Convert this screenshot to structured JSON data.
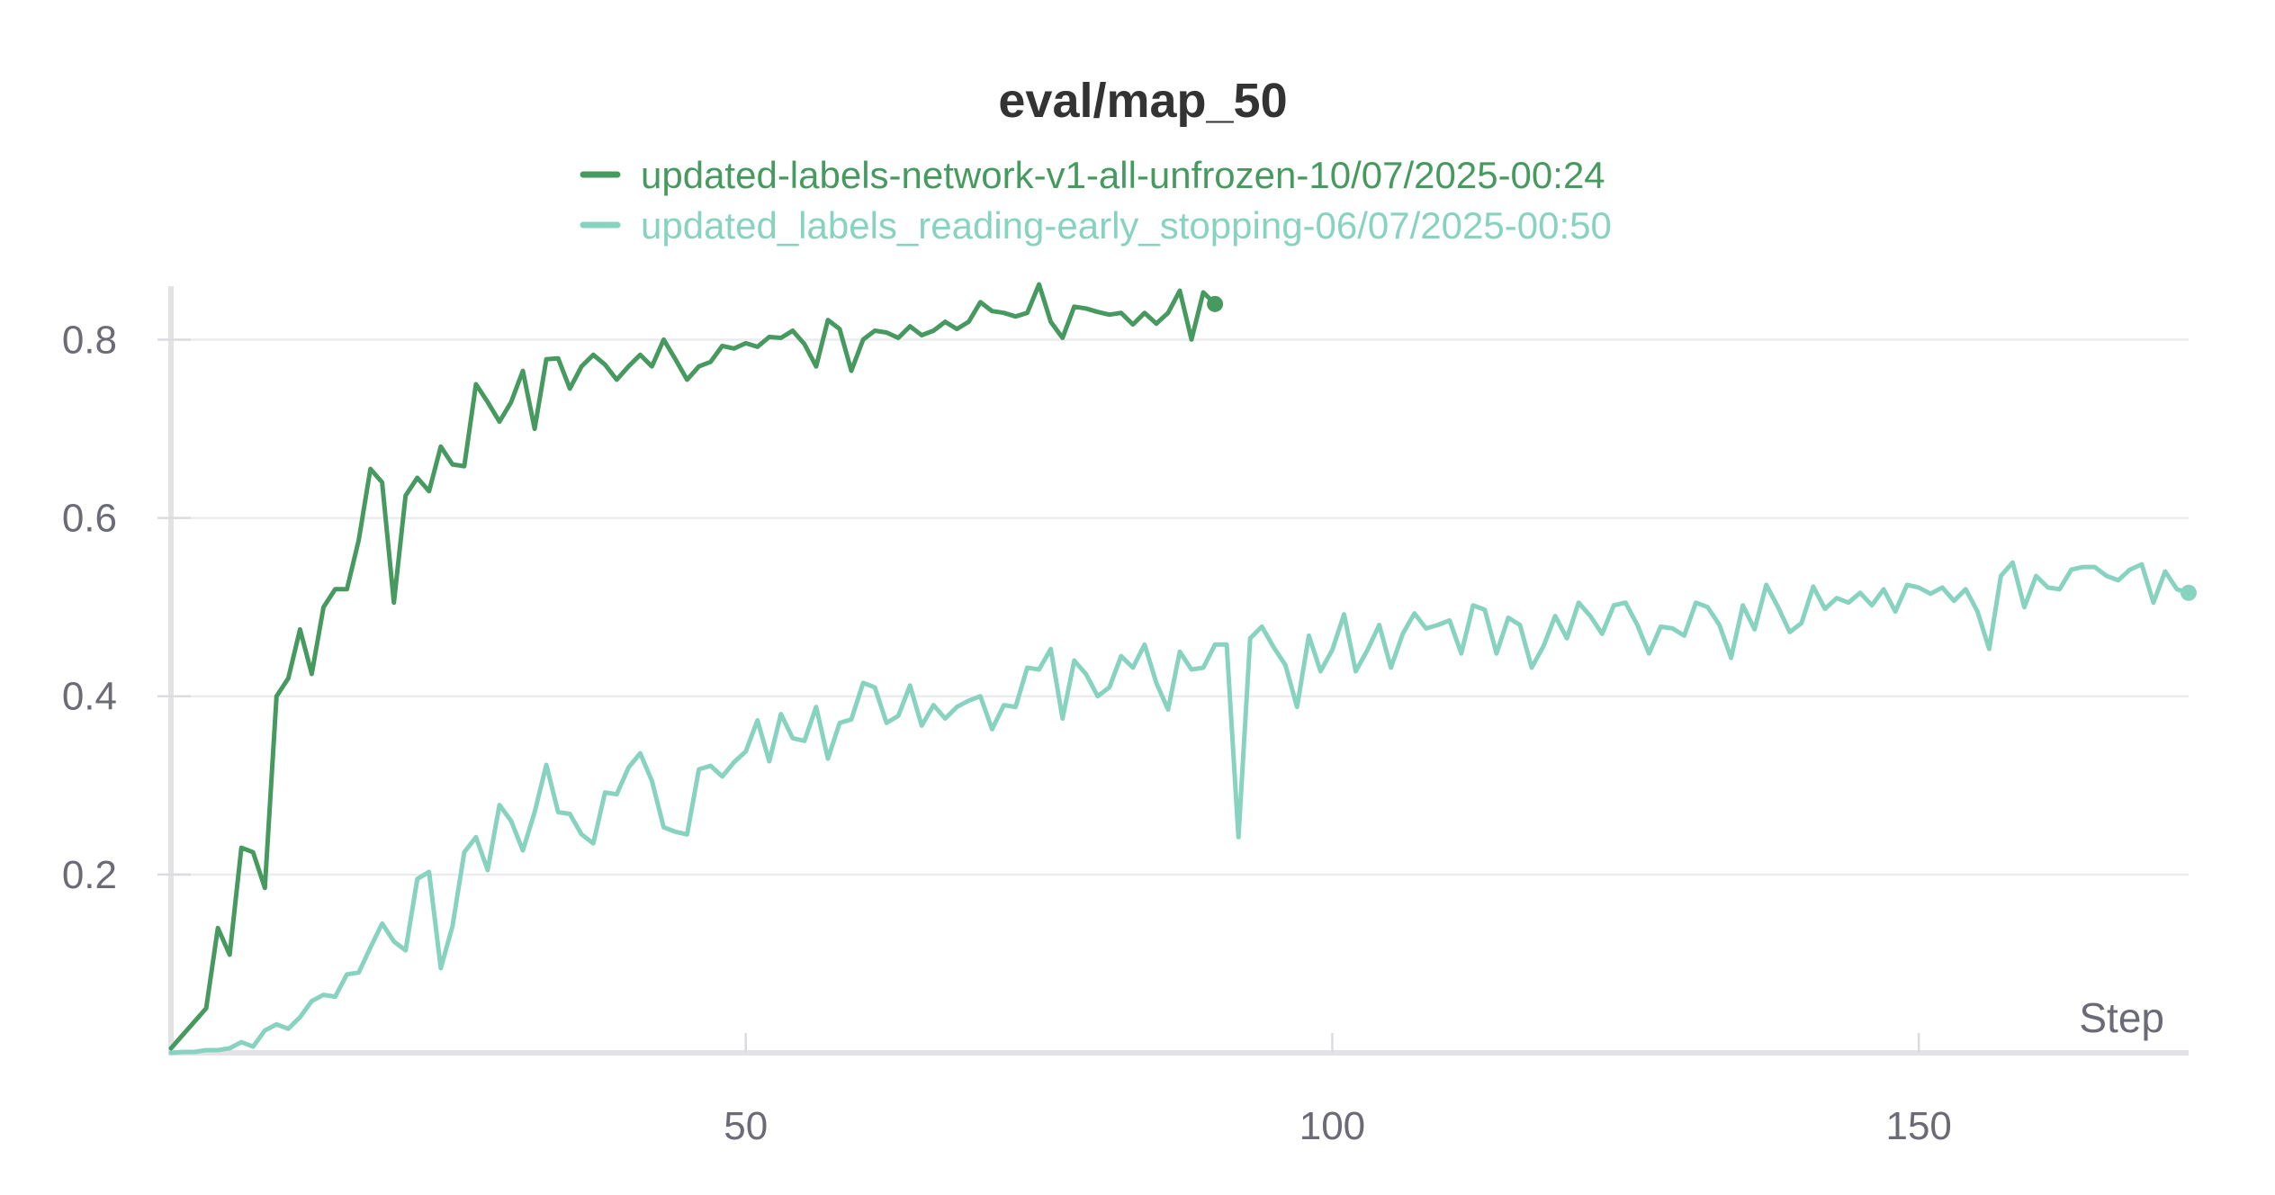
{
  "chart_data": {
    "type": "line",
    "title": "eval/map_50",
    "xlabel": "Step",
    "ylabel": "",
    "xlim": [
      1,
      173
    ],
    "ylim": [
      0,
      0.86
    ],
    "xticks": [
      50,
      100,
      150
    ],
    "xtick_labels": [
      "50",
      "100",
      "150"
    ],
    "yticks": [
      0.2,
      0.4,
      0.6,
      0.8
    ],
    "ytick_labels": [
      "0.2",
      "0.4",
      "0.6",
      "0.8"
    ],
    "grid": true,
    "legend_position": "top-center",
    "series": [
      {
        "name": "updated-labels-network-v1-all-unfrozen-10/07/2025-00:24",
        "color": "#479a5f",
        "x_start": 1,
        "values": [
          0.005,
          0.02,
          0.035,
          0.05,
          0.14,
          0.11,
          0.23,
          0.225,
          0.185,
          0.4,
          0.42,
          0.475,
          0.425,
          0.5,
          0.52,
          0.52,
          0.575,
          0.655,
          0.64,
          0.505,
          0.625,
          0.645,
          0.63,
          0.68,
          0.66,
          0.658,
          0.75,
          0.73,
          0.708,
          0.73,
          0.765,
          0.7,
          0.778,
          0.779,
          0.745,
          0.77,
          0.783,
          0.772,
          0.755,
          0.77,
          0.783,
          0.77,
          0.8,
          0.778,
          0.755,
          0.77,
          0.775,
          0.793,
          0.79,
          0.796,
          0.792,
          0.803,
          0.802,
          0.81,
          0.795,
          0.77,
          0.822,
          0.812,
          0.765,
          0.8,
          0.81,
          0.808,
          0.802,
          0.815,
          0.805,
          0.81,
          0.82,
          0.812,
          0.82,
          0.842,
          0.832,
          0.83,
          0.826,
          0.83,
          0.862,
          0.82,
          0.802,
          0.837,
          0.835,
          0.831,
          0.828,
          0.83,
          0.817,
          0.83,
          0.818,
          0.83,
          0.855,
          0.8,
          0.853,
          0.84
        ]
      },
      {
        "name": "updated_labels_reading-early_stopping-06/07/2025-00:50",
        "color": "#87d3c0",
        "x_start": 1,
        "values": [
          0.0,
          0.001,
          0.001,
          0.003,
          0.003,
          0.005,
          0.012,
          0.007,
          0.025,
          0.032,
          0.027,
          0.04,
          0.058,
          0.065,
          0.063,
          0.088,
          0.09,
          0.118,
          0.145,
          0.125,
          0.115,
          0.195,
          0.203,
          0.095,
          0.142,
          0.225,
          0.242,
          0.205,
          0.278,
          0.26,
          0.227,
          0.27,
          0.323,
          0.27,
          0.268,
          0.245,
          0.235,
          0.292,
          0.29,
          0.32,
          0.336,
          0.305,
          0.253,
          0.248,
          0.245,
          0.318,
          0.322,
          0.31,
          0.326,
          0.338,
          0.373,
          0.327,
          0.38,
          0.353,
          0.35,
          0.388,
          0.33,
          0.37,
          0.374,
          0.415,
          0.41,
          0.37,
          0.378,
          0.412,
          0.367,
          0.39,
          0.375,
          0.388,
          0.395,
          0.4,
          0.363,
          0.39,
          0.388,
          0.432,
          0.43,
          0.453,
          0.375,
          0.44,
          0.425,
          0.4,
          0.41,
          0.445,
          0.432,
          0.458,
          0.415,
          0.385,
          0.45,
          0.43,
          0.432,
          0.458,
          0.458,
          0.242,
          0.465,
          0.478,
          0.455,
          0.435,
          0.388,
          0.468,
          0.428,
          0.452,
          0.492,
          0.428,
          0.452,
          0.48,
          0.432,
          0.47,
          0.493,
          0.476,
          0.48,
          0.485,
          0.448,
          0.502,
          0.497,
          0.448,
          0.488,
          0.48,
          0.432,
          0.456,
          0.49,
          0.465,
          0.505,
          0.49,
          0.47,
          0.502,
          0.505,
          0.48,
          0.448,
          0.478,
          0.476,
          0.468,
          0.505,
          0.5,
          0.48,
          0.443,
          0.502,
          0.475,
          0.525,
          0.5,
          0.472,
          0.482,
          0.523,
          0.498,
          0.51,
          0.505,
          0.516,
          0.502,
          0.52,
          0.495,
          0.525,
          0.522,
          0.515,
          0.522,
          0.507,
          0.52,
          0.495,
          0.453,
          0.535,
          0.55,
          0.5,
          0.535,
          0.522,
          0.52,
          0.542,
          0.545,
          0.545,
          0.535,
          0.53,
          0.542,
          0.548,
          0.505,
          0.54,
          0.52,
          0.516
        ]
      }
    ]
  }
}
